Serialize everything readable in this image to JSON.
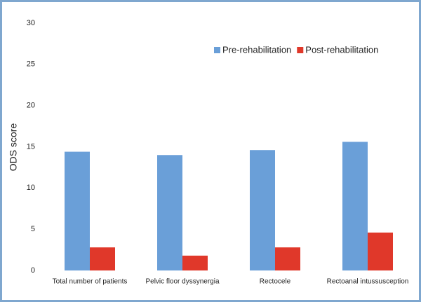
{
  "chart_data": {
    "type": "bar",
    "y_label": "ODS score",
    "categories": [
      "Total number of patients",
      "Pelvic floor dyssynergia",
      "Rectocele",
      "Rectoanal intussusception"
    ],
    "series": [
      {
        "name": "Pre-rehabilitation",
        "color": "#6a9fd8",
        "values": [
          14.4,
          14.0,
          14.6,
          15.6
        ]
      },
      {
        "name": "Post-rehabilitation",
        "color": "#e0382a",
        "values": [
          2.8,
          1.8,
          2.8,
          4.6
        ]
      }
    ],
    "ylim": [
      0,
      30
    ],
    "yticks": [
      0,
      5,
      10,
      15,
      20,
      25,
      30
    ],
    "grid": false,
    "legend": "top-right"
  }
}
